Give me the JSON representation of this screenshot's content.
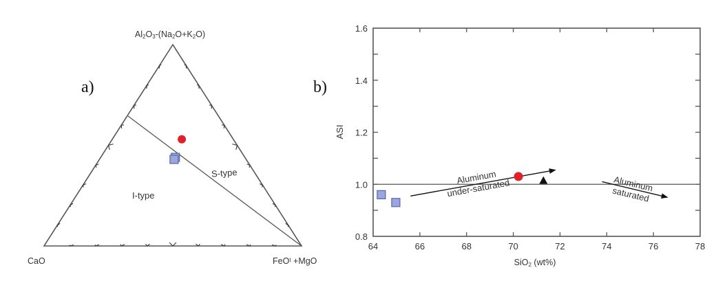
{
  "panels": {
    "a": {
      "label": "a)"
    },
    "b": {
      "label": "b)"
    }
  },
  "colors": {
    "granite_circle": "#e0202a",
    "square_fill": "#9aa6dc",
    "square_stroke": "#5a66a8",
    "triangle": "#111111",
    "axis": "#555555"
  },
  "chart_data": [
    {
      "type": "ternary",
      "panel": "a)",
      "title": "",
      "apices": {
        "top": "Al2O3-(Na2O+K2O)",
        "left": "CaO",
        "right": "FeOt+MgO"
      },
      "apex_labels_display": {
        "top_parts": [
          [
            "Al",
            ""
          ],
          [
            "2",
            "sub"
          ],
          [
            "O",
            ""
          ],
          [
            "3",
            "sub"
          ],
          [
            "-(Na",
            ""
          ],
          [
            "2",
            "sub"
          ],
          [
            "O+K",
            ""
          ],
          [
            "2",
            "sub"
          ],
          [
            "O)",
            ""
          ]
        ],
        "left": "CaO",
        "right_parts": [
          [
            "FeO",
            ""
          ],
          [
            "t",
            "sup"
          ],
          [
            " +MgO",
            ""
          ]
        ]
      },
      "tick_interval_percent": 10,
      "fields": [
        {
          "name": "I-type",
          "label": "I-type"
        },
        {
          "name": "S-type",
          "label": "S-type"
        }
      ],
      "divider_line": {
        "from_edge": "CaO–Al2O3 edge at ~48% Al2O3 apex fraction",
        "to": "FeOt+MgO apex"
      },
      "points": [
        {
          "series": "red circle",
          "marker": "circle",
          "approx_fraction": {
            "top": 0.53,
            "left": 0.2,
            "right": 0.27
          }
        },
        {
          "series": "blue square",
          "marker": "square",
          "approx_fraction": {
            "top": 0.44,
            "left": 0.27,
            "right": 0.29
          }
        },
        {
          "series": "blue square",
          "marker": "square",
          "approx_fraction": {
            "top": 0.43,
            "left": 0.28,
            "right": 0.29
          }
        }
      ]
    },
    {
      "type": "scatter",
      "panel": "b)",
      "title": "",
      "xlabel_parts": [
        [
          "SiO",
          ""
        ],
        [
          "2",
          "sub"
        ],
        [
          " (wt%)",
          ""
        ]
      ],
      "xlabel": "SiO2 (wt%)",
      "ylabel": "ASI",
      "xlim": [
        64,
        78
      ],
      "ylim": [
        0.8,
        1.6
      ],
      "xticks": [
        "64",
        "66",
        "68",
        "70",
        "72",
        "74",
        "76",
        "78"
      ],
      "yticks": [
        "0.8",
        "1.0",
        "1.2",
        "1.4",
        "1.6"
      ],
      "y_minor_ticks": [
        0.9,
        1.1,
        1.3,
        1.5
      ],
      "grid": false,
      "reference_line": {
        "y": 1.0
      },
      "series": [
        {
          "name": "blue squares",
          "marker": "square",
          "points": [
            {
              "x": 64.35,
              "y": 0.96
            },
            {
              "x": 64.97,
              "y": 0.93
            }
          ]
        },
        {
          "name": "red circle",
          "marker": "circle",
          "points": [
            {
              "x": 70.22,
              "y": 1.03
            }
          ]
        },
        {
          "name": "black triangle",
          "marker": "triangle",
          "points": [
            {
              "x": 71.29,
              "y": 1.015
            }
          ]
        }
      ],
      "annotations": [
        {
          "text_lines": [
            "Aluminum",
            "under-saturated"
          ],
          "arrow": {
            "from": [
              65.6,
              0.955
            ],
            "to": [
              71.8,
              1.055
            ]
          }
        },
        {
          "text_lines": [
            "Aluminum",
            "saturated"
          ],
          "arrow": {
            "from": [
              73.8,
              1.01
            ],
            "to": [
              76.6,
              0.95
            ]
          }
        }
      ]
    }
  ]
}
